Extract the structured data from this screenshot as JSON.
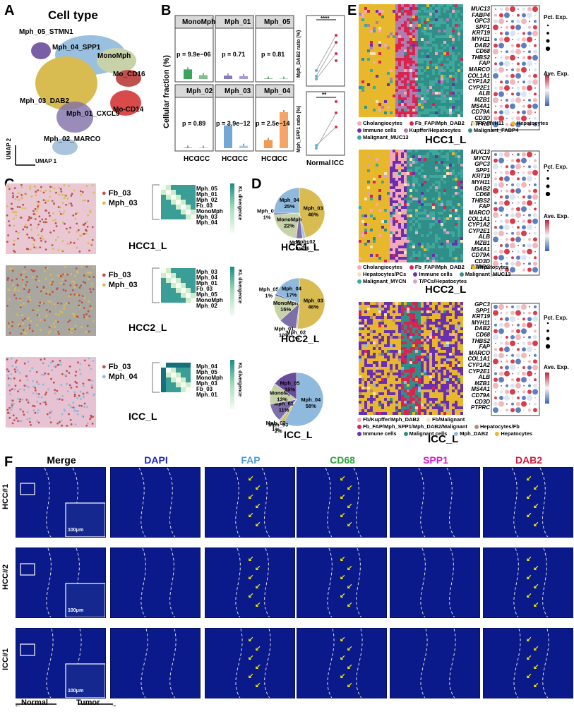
{
  "panels": {
    "A": "A",
    "B": "B",
    "C": "C",
    "D": "D",
    "E": "E",
    "F": "F"
  },
  "umap": {
    "title": "Cell type",
    "xaxis": "UMAP 1",
    "yaxis": "UMAP 2",
    "clusters": [
      "Mph_05_STMN1",
      "Mph_04_SPP1",
      "MonoMph",
      "Mo_CD16",
      "Mo-CD14",
      "Mph_03_DAB2",
      "Mph_01_CXCL9",
      "Mph_02_MARCO"
    ],
    "colors": {
      "Mph_05": "#6a4c9c",
      "Mph_04": "#8fb9dd",
      "MonoMph": "#c8d2a8",
      "Mo_CD16": "#c0504d",
      "Mo_CD14": "#d94b4b",
      "Mph_03": "#d8bc52",
      "Mph_01": "#7f6fa8",
      "Mph_02": "#a9c4dc"
    }
  },
  "barB": {
    "ylabel": "Cellular fraction (%)",
    "xlabels": [
      "HCC",
      "ICC"
    ],
    "facets": [
      {
        "name": "MonoMph",
        "p": "p = 9.9e−06",
        "hcc": 20,
        "icc": 8,
        "c1": "#3aa55a",
        "c2": "#7fc08a"
      },
      {
        "name": "Mph_01",
        "p": "p = 0.71",
        "hcc": 7,
        "icc": 6,
        "c1": "#8877c4",
        "c2": "#a89ad6"
      },
      {
        "name": "Mph_05",
        "p": "p = 0.81",
        "hcc": 1,
        "icc": 1,
        "c1": "#4aa562",
        "c2": "#8ccf98"
      },
      {
        "name": "Mph_02",
        "p": "p = 0.89",
        "hcc": 1,
        "icc": 1,
        "c1": "#4aa562",
        "c2": "#8ccf98"
      },
      {
        "name": "Mph_03",
        "p": "p = 3.9e−12",
        "hcc": 47,
        "icc": 5,
        "c1": "#72a7d6",
        "c2": "#a9c9e8"
      },
      {
        "name": "Mph_04",
        "p": "p = 2.5e−14",
        "hcc": 17,
        "icc": 75,
        "c1": "#f09a55",
        "c2": "#f5a567"
      }
    ],
    "yticks": [
      "0",
      "25",
      "50",
      "75",
      "100"
    ],
    "ratio1": {
      "ylabel": "Mph_DAB2 ratio (%)",
      "sig": "****"
    },
    "ratio2": {
      "ylabel": "Mph_SPP1 ratio (%)",
      "sig": "**"
    },
    "ratioX": [
      "Normal",
      "ICC"
    ]
  },
  "sectionC": [
    {
      "label": "HCC1_L",
      "leg": [
        "Fb_03",
        "Mph_03"
      ],
      "heat": [
        "Mph_05",
        "Mph_01",
        "Mph_02",
        "Fb_03",
        "MonoMph",
        "Mph_03",
        "Mph_04"
      ]
    },
    {
      "label": "HCC2_L",
      "leg": [
        "Fb_03",
        "Mph_03"
      ],
      "heat": [
        "Mph_03",
        "Mph_04",
        "Mph_01",
        "Fb_03",
        "Mph_05",
        "MonoMph",
        "Mph_02"
      ]
    },
    {
      "label": "ICC_L",
      "leg": [
        "Fb_03",
        "Mph_04"
      ],
      "heat": [
        "Mph_04",
        "Mph_05",
        "MonoMph",
        "Mph_03",
        "Fb_03",
        "Mph_01"
      ]
    }
  ],
  "kl": "KL divergence",
  "klticks": [
    "1",
    "0.8",
    "0.6",
    "0.4",
    "0.2",
    "0"
  ],
  "pies": [
    {
      "label": "HCC1_L",
      "slices": [
        {
          "n": "Mph_03",
          "v": 46,
          "c": "#d8bc52"
        },
        {
          "n": "Mph_02",
          "v": 2,
          "c": "#a9c4dc"
        },
        {
          "n": "Mph_01",
          "v": 4,
          "c": "#7f6fa8"
        },
        {
          "n": "MonoMph",
          "v": 22,
          "c": "#c8d2a8"
        },
        {
          "n": "Mph_05",
          "v": 1,
          "c": "#6a4c9c"
        },
        {
          "n": "Mph_04",
          "v": 25,
          "c": "#8fb9dd"
        }
      ]
    },
    {
      "label": "HCC2_L",
      "slices": [
        {
          "n": "Mph_03",
          "v": 46,
          "c": "#d8bc52"
        },
        {
          "n": "Mph_02",
          "v": 1,
          "c": "#a9c4dc"
        },
        {
          "n": "Mph_01",
          "v": 10,
          "c": "#7f6fa8"
        },
        {
          "n": "MonoMph",
          "v": 15,
          "c": "#c8d2a8"
        },
        {
          "n": "Mph_05",
          "v": 1,
          "c": "#6a4c9c"
        },
        {
          "n": "Mph_04",
          "v": 17,
          "c": "#8fb9dd"
        }
      ]
    },
    {
      "label": "ICC_L",
      "slices": [
        {
          "n": "Mph_04",
          "v": 58,
          "c": "#8fb9dd"
        },
        {
          "n": "Mph_03",
          "v": 2,
          "c": "#d8bc52"
        },
        {
          "n": "Mph_02",
          "v": 1,
          "c": "#a9c4dc"
        },
        {
          "n": "Mph_01",
          "v": 11,
          "c": "#7f6fa8"
        },
        {
          "n": "MonoMph",
          "v": 13,
          "c": "#c8d2a8"
        },
        {
          "n": "Mph_05",
          "v": 15,
          "c": "#6a4c9c"
        }
      ]
    }
  ],
  "spatialE": [
    {
      "label": "HCC1_L",
      "genes": [
        "MUC13",
        "FABP4",
        "GPC3",
        "SPP1",
        "KRT19",
        "MYH11",
        "DAB2",
        "CD68",
        "THBS2",
        "FAP",
        "MARCO",
        "COL1A1",
        "CYP1A2",
        "CYP2E1",
        "ALB",
        "MZB1",
        "MS4A1",
        "CD79A",
        "CD3D",
        "PTPRC"
      ],
      "legend": [
        "Cholangiocytes",
        "Fb_FAP/Mph_DAB2",
        "Fb_MYH11",
        "Hepatocytes",
        "Immune cells",
        "Kupffer/Hepatocytes",
        "Malignant_FABP4",
        "Malignant_MUC13"
      ],
      "lcolors": [
        "#f4a9b8",
        "#d8244f",
        "#f6e2b8",
        "#e7b72c",
        "#6a2fb0",
        "#b07cb2",
        "#2f8e87",
        "#3fa79c"
      ]
    },
    {
      "label": "HCC2_L",
      "genes": [
        "MUC13",
        "MYCN",
        "GPC3",
        "SPP1",
        "KRT19",
        "MYH11",
        "DAB2",
        "CD68",
        "THBS2",
        "FAP",
        "MARCO",
        "COL1A1",
        "CYP1A2",
        "CYP2E1",
        "ALB",
        "MZB1",
        "MS4A1",
        "CD79A",
        "CD3D",
        "PTPRC"
      ],
      "legend": [
        "Cholangiocytes",
        "Fb_FAP/Mph_DAB2",
        "Hepatocytes",
        "Hepatocytes/PCs",
        "Immune cells",
        "Malignant_MUC13",
        "Malignant_MYCN",
        "T/PCs/Hepatocytes"
      ],
      "lcolors": [
        "#f4a9b8",
        "#d8244f",
        "#e7b72c",
        "#f6e2b8",
        "#6a2fb0",
        "#2f8e87",
        "#3fa79c",
        "#d9a3c9"
      ]
    },
    {
      "label": "ICC_L",
      "genes": [
        "GPC3",
        "SPP1",
        "KRT19",
        "MYH11",
        "DAB2",
        "CD68",
        "THBS2",
        "FAP",
        "MARCO",
        "COL1A1",
        "CYP1A2",
        "CYP2E1",
        "ALB",
        "MZB1",
        "MS4A1",
        "CD79A",
        "CD3D",
        "PTPRC"
      ],
      "legend": [
        "Fb/Kupffer/Mph_DAB2",
        "Fb/Malignant",
        "Fb_FAP/Mph_SPP1/Mph_DAB2/Malignant",
        "Hepatocytes/Fb",
        "Immune cells",
        "Malignant cells",
        "Mph_DAB2",
        "Hepatocytes"
      ],
      "lcolors": [
        "#f4a9b8",
        "#f6e2b8",
        "#d8244f",
        "#b08a7a",
        "#6a2fb0",
        "#2f8e87",
        "#8fb9dd",
        "#e7b72c"
      ]
    }
  ],
  "pctLegend": {
    "title": "Pct. Exp.",
    "vals": [
      "0",
      "25",
      "50",
      "75",
      "100"
    ]
  },
  "aveLegend": {
    "title": "Ave. Exp.",
    "vals": [
      "2",
      "1",
      "0",
      "-1"
    ]
  },
  "aveLegend2": {
    "title": "Ave. Exp.",
    "vals": [
      "1",
      "0",
      "-1",
      "-2"
    ]
  },
  "if": {
    "cols": [
      "Merge",
      "DAPI",
      "FAP",
      "CD68",
      "SPP1",
      "DAB2"
    ],
    "colColors": [
      "#000000",
      "#1c24c8",
      "#4a9ad6",
      "#2ea83a",
      "#d31ccf",
      "#d01c3a"
    ],
    "rows": [
      "HCC#1",
      "HCC#2",
      "ICC#1"
    ],
    "scale": "100μm",
    "normal": "Normal",
    "tumor": "Tumor"
  }
}
